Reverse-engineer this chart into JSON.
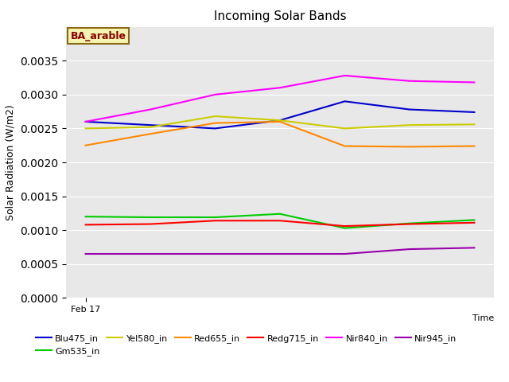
{
  "title": "Incoming Solar Bands",
  "ylabel": "Solar Radiation (W/m2)",
  "annotation": "BA_arable",
  "background_color": "#e8e8e8",
  "series_order": [
    "Blu475_in",
    "Gm535_in",
    "Yel580_in",
    "Red655_in",
    "Redg715_in",
    "Nir840_in",
    "Nir945_in"
  ],
  "series": {
    "Blu475_in": {
      "color": "#0000cc",
      "values": [
        0.0026,
        0.00255,
        0.0025,
        0.00262,
        0.0029,
        0.00278,
        0.00274
      ]
    },
    "Gm535_in": {
      "color": "#00cc00",
      "values": [
        0.0012,
        0.00119,
        0.00119,
        0.00124,
        0.00103,
        0.0011,
        0.00115
      ]
    },
    "Yel580_in": {
      "color": "#cccc00",
      "values": [
        0.0025,
        0.00252,
        0.00268,
        0.00262,
        0.0025,
        0.00255,
        0.00256
      ]
    },
    "Red655_in": {
      "color": "#ff8800",
      "values": [
        0.00225,
        0.00242,
        0.00258,
        0.0026,
        0.00224,
        0.00223,
        0.00224
      ]
    },
    "Redg715_in": {
      "color": "#ff0000",
      "values": [
        0.00108,
        0.00109,
        0.00114,
        0.00114,
        0.00106,
        0.00109,
        0.00111
      ]
    },
    "Nir840_in": {
      "color": "#ff00ff",
      "values": [
        0.0026,
        0.00278,
        0.003,
        0.0031,
        0.00328,
        0.0032,
        0.00318
      ]
    },
    "Nir945_in": {
      "color": "#9900aa",
      "values": [
        0.00065,
        0.00065,
        0.00065,
        0.00065,
        0.00065,
        0.00072,
        0.00074
      ]
    }
  },
  "ylim": [
    0.0,
    0.004
  ],
  "yticks": [
    0.0,
    0.0005,
    0.001,
    0.0015,
    0.002,
    0.0025,
    0.003,
    0.0035
  ],
  "n_points": 7,
  "legend_order": [
    "Blu475_in",
    "Gm535_in",
    "Yel580_in",
    "Red655_in",
    "Redg715_in",
    "Nir840_in",
    "Nir945_in"
  ]
}
